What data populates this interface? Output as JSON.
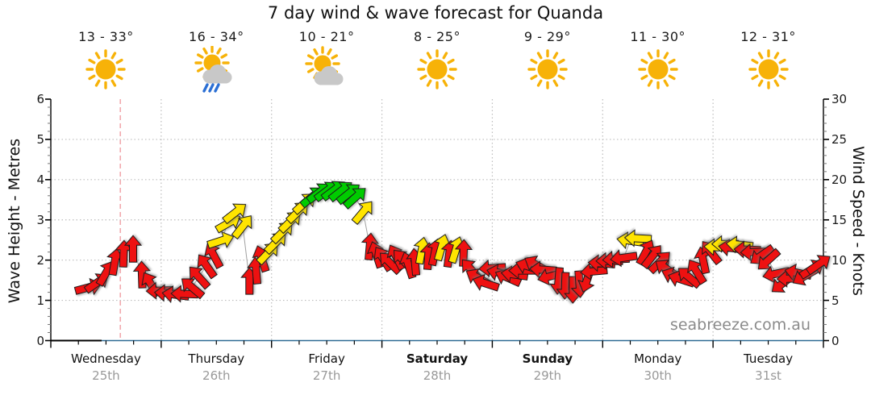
{
  "title": "7 day wind & wave forecast for Quanda",
  "watermark": "seabreeze.com.au",
  "days": [
    {
      "name": "Wednesday",
      "date": "25th",
      "temp_range": "13 - 33°",
      "icon": "sunny",
      "weekend": false
    },
    {
      "name": "Thursday",
      "date": "26th",
      "temp_range": "16 - 34°",
      "icon": "sun-rain",
      "weekend": false
    },
    {
      "name": "Friday",
      "date": "27th",
      "temp_range": "10 - 21°",
      "icon": "sun-cloud",
      "weekend": false
    },
    {
      "name": "Saturday",
      "date": "28th",
      "temp_range": "8 - 25°",
      "icon": "sunny",
      "weekend": true
    },
    {
      "name": "Sunday",
      "date": "29th",
      "temp_range": "9 - 29°",
      "icon": "sunny",
      "weekend": true
    },
    {
      "name": "Monday",
      "date": "30th",
      "temp_range": "11 - 30°",
      "icon": "sunny",
      "weekend": false
    },
    {
      "name": "Tuesday",
      "date": "31st",
      "temp_range": "12 - 31°",
      "icon": "sunny",
      "weekend": false
    }
  ],
  "axes": {
    "left": {
      "label": "Wave Height - Metres",
      "tick_labels": [
        "0",
        "1",
        "2",
        "3",
        "4",
        "5",
        "6"
      ],
      "range": [
        0,
        6
      ],
      "minor_step": 0.2
    },
    "right": {
      "label": "Wind Speed - Knots",
      "tick_labels": [
        "0",
        "5",
        "10",
        "15",
        "20",
        "25",
        "30"
      ],
      "range": [
        0,
        30
      ],
      "minor_step": 1
    },
    "x": {
      "num_days": 7,
      "minor_ticks_per_day": 4,
      "grid": "dotted at day boundaries and whole metres"
    }
  },
  "current_time_marker": {
    "day_frac": 0.63,
    "style": "pink dashed vertical line"
  },
  "colors": {
    "arrow_red": "#ee1111",
    "arrow_yellow": "#ffe400",
    "arrow_green": "#00cc00",
    "arrow_outline": "#1a1a1a",
    "grid": "#bdbdbd",
    "marker_pink": "#f2a9ad",
    "baseline_past_black": "#000000",
    "baseline_blue": "#2d6a93",
    "connector_gray": "#a0a0a0",
    "date_gray": "#999999",
    "watermark_gray": "#8a8a8a",
    "sun": "#f7b208",
    "cloud": "#c8c8c8",
    "rain": "#2b6fd4"
  },
  "chart_data": {
    "type": "wind-barb-series",
    "title": "7 day wind & wave forecast for Quanda",
    "x_axis": "Time, Wednesday 25th through Tuesday 31st (day_frac 0-7)",
    "y_axis_left": "Wave Height - Metres, 0-6",
    "y_axis_right": "Wind Speed - Knots, 0-30 (arrows plotted on this scale; wave_m = knots / 5)",
    "legend": "arrow colour = wind strength: red < ~12 kn, yellow ~12-17 kn, green > ~17.5 kn",
    "point_fields": [
      "day_frac_0_to_7",
      "wind_knots",
      "arrow_direction_deg_0_is_east_neg_is_up",
      "color_code_r_y_g"
    ],
    "points": [
      [
        0.34,
        6.6,
        -15,
        "r"
      ],
      [
        0.42,
        7.2,
        -35,
        "r"
      ],
      [
        0.5,
        8.4,
        -60,
        "r"
      ],
      [
        0.58,
        9.8,
        -80,
        "r"
      ],
      [
        0.66,
        10.8,
        -88,
        "r"
      ],
      [
        0.745,
        11.4,
        -90,
        "r"
      ],
      [
        0.826,
        8.2,
        -92,
        "r"
      ],
      [
        0.906,
        7.0,
        -120,
        "r"
      ],
      [
        0.986,
        6.2,
        178,
        "r"
      ],
      [
        1.06,
        5.9,
        183,
        "r"
      ],
      [
        1.13,
        5.7,
        188,
        "r"
      ],
      [
        1.21,
        5.8,
        182,
        "r"
      ],
      [
        1.28,
        6.6,
        -140,
        "r"
      ],
      [
        1.34,
        7.9,
        -132,
        "r"
      ],
      [
        1.41,
        9.3,
        -125,
        "r"
      ],
      [
        1.476,
        10.6,
        -118,
        "r"
      ],
      [
        1.54,
        12.4,
        -18,
        "y"
      ],
      [
        1.61,
        14.6,
        -30,
        "y"
      ],
      [
        1.67,
        15.9,
        -38,
        "y"
      ],
      [
        1.74,
        14.2,
        -52,
        "y"
      ],
      [
        1.8,
        7.4,
        -90,
        "r"
      ],
      [
        1.86,
        8.7,
        -95,
        "r"
      ],
      [
        1.91,
        10.2,
        -108,
        "r"
      ],
      [
        1.97,
        10.9,
        -46,
        "y"
      ],
      [
        2.04,
        12.2,
        -45,
        "y"
      ],
      [
        2.1,
        13.5,
        -45,
        "y"
      ],
      [
        2.17,
        14.8,
        -44,
        "y"
      ],
      [
        2.24,
        16.0,
        -44,
        "y"
      ],
      [
        2.3,
        17.1,
        -42,
        "y"
      ],
      [
        2.37,
        17.9,
        -40,
        "g"
      ],
      [
        2.43,
        18.4,
        -38,
        "g"
      ],
      [
        2.5,
        18.6,
        -37,
        "g"
      ],
      [
        2.565,
        18.7,
        -37,
        "g"
      ],
      [
        2.63,
        18.6,
        -38,
        "g"
      ],
      [
        2.7,
        18.3,
        -39,
        "g"
      ],
      [
        2.76,
        17.8,
        -42,
        "g"
      ],
      [
        2.83,
        16.0,
        -50,
        "y"
      ],
      [
        2.89,
        11.7,
        -85,
        "r"
      ],
      [
        2.95,
        10.7,
        -108,
        "r"
      ],
      [
        3.01,
        10.2,
        -122,
        "r"
      ],
      [
        3.07,
        9.7,
        -135,
        "r"
      ],
      [
        3.13,
        10.4,
        -118,
        "r"
      ],
      [
        3.19,
        10.0,
        -132,
        "r"
      ],
      [
        3.24,
        9.4,
        -108,
        "r"
      ],
      [
        3.3,
        9.8,
        -95,
        "r"
      ],
      [
        3.36,
        11.2,
        -80,
        "y"
      ],
      [
        3.42,
        10.5,
        -86,
        "r"
      ],
      [
        3.48,
        11.0,
        -78,
        "r"
      ],
      [
        3.54,
        11.6,
        -74,
        "y"
      ],
      [
        3.61,
        10.8,
        -82,
        "r"
      ],
      [
        3.67,
        11.3,
        -73,
        "y"
      ],
      [
        3.74,
        10.9,
        -88,
        "r"
      ],
      [
        3.81,
        8.8,
        -132,
        "r"
      ],
      [
        3.87,
        7.8,
        -150,
        "r"
      ],
      [
        3.94,
        7.1,
        -162,
        "r"
      ],
      [
        4.0,
        9.0,
        176,
        "r"
      ],
      [
        4.07,
        8.4,
        -168,
        "r"
      ],
      [
        4.14,
        7.8,
        -156,
        "r"
      ],
      [
        4.2,
        8.2,
        -172,
        "r"
      ],
      [
        4.27,
        8.7,
        180,
        "r"
      ],
      [
        4.33,
        9.2,
        -162,
        "r"
      ],
      [
        4.4,
        9.4,
        -150,
        "r"
      ],
      [
        4.46,
        8.8,
        184,
        "r"
      ],
      [
        4.53,
        8.0,
        165,
        "r"
      ],
      [
        4.6,
        7.4,
        95,
        "r"
      ],
      [
        4.66,
        6.8,
        92,
        "r"
      ],
      [
        4.73,
        6.3,
        90,
        "r"
      ],
      [
        4.79,
        7.0,
        86,
        "r"
      ],
      [
        4.86,
        7.6,
        108,
        "r"
      ],
      [
        4.92,
        8.6,
        175,
        "r"
      ],
      [
        4.99,
        9.6,
        184,
        "r"
      ],
      [
        5.06,
        9.9,
        180,
        "r"
      ],
      [
        5.12,
        10.1,
        177,
        "r"
      ],
      [
        5.19,
        10.3,
        172,
        "r"
      ],
      [
        5.25,
        12.4,
        188,
        "y"
      ],
      [
        5.32,
        12.7,
        183,
        "y"
      ],
      [
        5.39,
        11.0,
        -62,
        "r"
      ],
      [
        5.45,
        10.5,
        -52,
        "r"
      ],
      [
        5.52,
        9.8,
        -45,
        "r"
      ],
      [
        5.58,
        8.9,
        -145,
        "r"
      ],
      [
        5.65,
        8.0,
        -158,
        "r"
      ],
      [
        5.71,
        7.6,
        -162,
        "r"
      ],
      [
        5.78,
        7.9,
        -140,
        "r"
      ],
      [
        5.85,
        8.6,
        -122,
        "r"
      ],
      [
        5.91,
        10.0,
        -102,
        "r"
      ],
      [
        5.98,
        11.0,
        -128,
        "r"
      ],
      [
        6.04,
        11.6,
        183,
        "y"
      ],
      [
        6.11,
        12.0,
        180,
        "y"
      ],
      [
        6.17,
        11.5,
        -172,
        "r"
      ],
      [
        6.24,
        11.9,
        186,
        "y"
      ],
      [
        6.31,
        11.3,
        182,
        "r"
      ],
      [
        6.37,
        11.0,
        178,
        "r"
      ],
      [
        6.44,
        10.6,
        145,
        "r"
      ],
      [
        6.5,
        10.0,
        138,
        "r"
      ],
      [
        6.57,
        8.3,
        168,
        "r"
      ],
      [
        6.63,
        7.1,
        142,
        "r"
      ],
      [
        6.7,
        7.7,
        178,
        "r"
      ],
      [
        6.77,
        8.4,
        -168,
        "r"
      ],
      [
        6.83,
        8.0,
        150,
        "r"
      ],
      [
        6.9,
        8.9,
        -32,
        "r"
      ],
      [
        6.96,
        9.5,
        -35,
        "r"
      ]
    ]
  }
}
